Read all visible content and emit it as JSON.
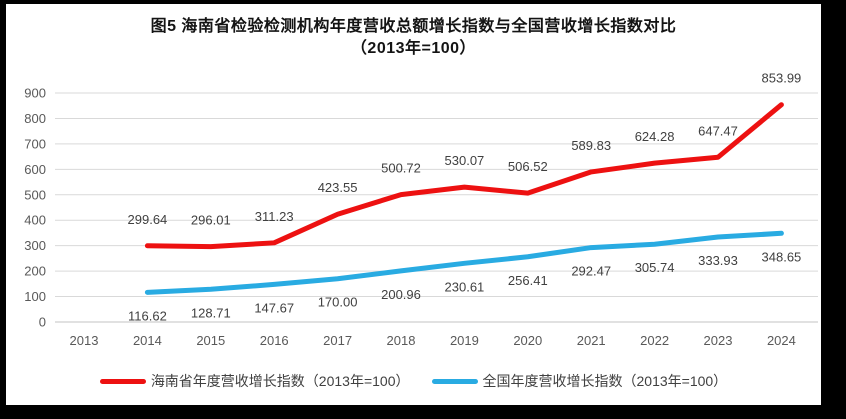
{
  "figure": {
    "title_line1": "图5  海南省检验检测机构年度营收总额增长指数与全国营收增长指数对比",
    "title_line2": "（2013年=100）"
  },
  "chart_data": {
    "type": "line",
    "categories": [
      "2013",
      "2014",
      "2015",
      "2016",
      "2017",
      "2018",
      "2019",
      "2020",
      "2021",
      "2022",
      "2023",
      "2024"
    ],
    "series": [
      {
        "id": "hainan",
        "name": "海南省年度营收增长指数（2013年=100）",
        "color": "#ED1111",
        "label_position": "above",
        "values": [
          null,
          299.64,
          296.01,
          311.23,
          423.55,
          500.72,
          530.07,
          506.52,
          589.83,
          624.28,
          647.47,
          853.99
        ],
        "value_labels": [
          null,
          "299.64",
          "296.01",
          "311.23",
          "423.55",
          "500.72",
          "530.07",
          "506.52",
          "589.83",
          "624.28",
          "647.47",
          "853.99"
        ]
      },
      {
        "id": "national",
        "name": "全国年度营收增长指数（2013年=100）",
        "color": "#29ABE2",
        "label_position": "below",
        "values": [
          null,
          116.62,
          128.71,
          147.67,
          170.0,
          200.96,
          230.61,
          256.41,
          292.47,
          305.74,
          333.93,
          348.65
        ],
        "value_labels": [
          null,
          "116.62",
          "128.71",
          "147.67",
          "170.00",
          "200.96",
          "230.61",
          "256.41",
          "292.47",
          "305.74",
          "333.93",
          "348.65"
        ]
      }
    ],
    "ylim": [
      0,
      900
    ],
    "ytick_step": 100,
    "grid": true,
    "legend_position": "bottom",
    "colors": {
      "gridline": "#D9D9D9",
      "baseline": "#C3C3C3",
      "axis_text": "#595959",
      "data_label_text": "#404040"
    }
  }
}
